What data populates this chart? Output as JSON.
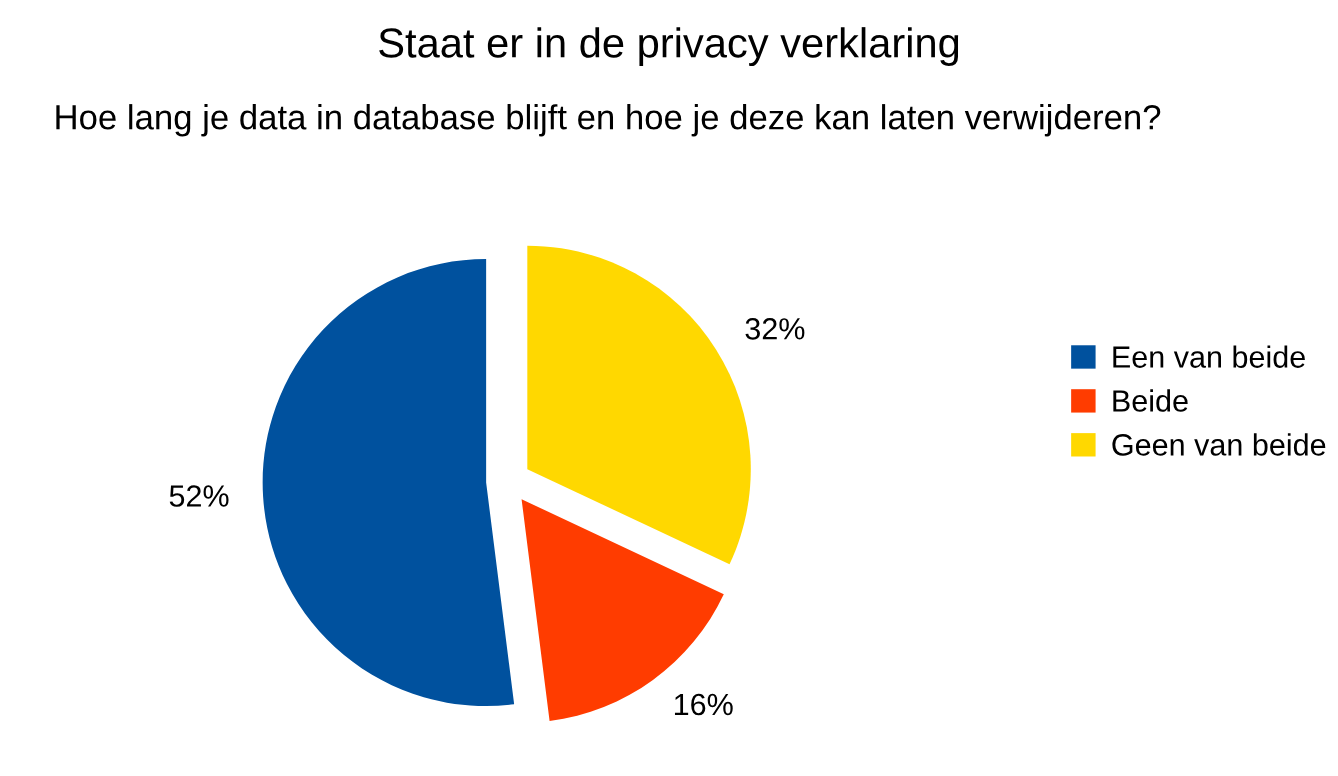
{
  "chart_data": {
    "type": "pie",
    "title": "Staat er in de privacy verklaring",
    "subtitle": "Hoe lang je data in database blijft en hoe je deze kan laten verwijderen?",
    "categories": [
      "Een van beide",
      "Beide",
      "Geen van beide"
    ],
    "values": [
      52,
      16,
      32
    ],
    "colors": [
      "#00519e",
      "#ff3c00",
      "#ffd800"
    ],
    "value_labels": [
      "52%",
      "16%",
      "32%"
    ],
    "legend": "right"
  }
}
